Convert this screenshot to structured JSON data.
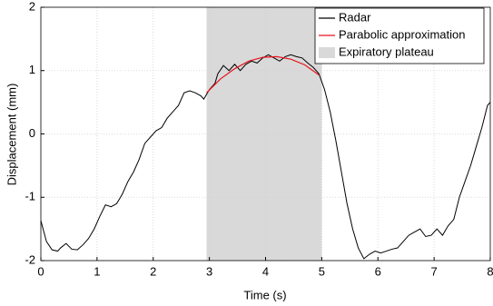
{
  "chart_data": {
    "type": "line",
    "xlabel": "Time (s)",
    "ylabel": "Displacement (mm)",
    "xlim": [
      0,
      8
    ],
    "ylim": [
      -2,
      2
    ],
    "xticks": [
      0,
      1,
      2,
      3,
      4,
      5,
      6,
      7,
      8
    ],
    "yticks": [
      -2,
      -1,
      0,
      1,
      2
    ],
    "grid": true,
    "legend": "upper right",
    "series": [
      {
        "name": "Radar",
        "color": "#000000",
        "x": [
          0,
          0.1,
          0.2,
          0.3,
          0.35,
          0.45,
          0.55,
          0.65,
          0.75,
          0.85,
          0.95,
          1.05,
          1.15,
          1.25,
          1.35,
          1.45,
          1.55,
          1.65,
          1.75,
          1.85,
          1.95,
          2.05,
          2.15,
          2.25,
          2.35,
          2.45,
          2.55,
          2.65,
          2.75,
          2.85,
          2.9,
          3.0,
          3.1,
          3.15,
          3.25,
          3.35,
          3.45,
          3.55,
          3.65,
          3.75,
          3.85,
          3.95,
          4.05,
          4.15,
          4.25,
          4.35,
          4.45,
          4.55,
          4.65,
          4.75,
          4.85,
          4.95,
          5.05,
          5.15,
          5.25,
          5.35,
          5.45,
          5.55,
          5.65,
          5.75,
          5.85,
          5.95,
          6.05,
          6.15,
          6.25,
          6.35,
          6.45,
          6.55,
          6.65,
          6.75,
          6.85,
          6.95,
          7.05,
          7.15,
          7.25,
          7.35,
          7.45,
          7.55,
          7.65,
          7.75,
          7.85,
          7.95,
          8.0
        ],
        "values": [
          -1.37,
          -1.7,
          -1.83,
          -1.85,
          -1.8,
          -1.73,
          -1.82,
          -1.83,
          -1.75,
          -1.65,
          -1.5,
          -1.3,
          -1.12,
          -1.15,
          -1.1,
          -0.95,
          -0.75,
          -0.6,
          -0.4,
          -0.15,
          -0.05,
          0.05,
          0.1,
          0.25,
          0.35,
          0.45,
          0.65,
          0.68,
          0.65,
          0.6,
          0.55,
          0.7,
          0.8,
          0.95,
          1.08,
          1.0,
          1.1,
          1.0,
          1.1,
          1.15,
          1.12,
          1.2,
          1.25,
          1.2,
          1.15,
          1.22,
          1.25,
          1.22,
          1.2,
          1.12,
          1.05,
          0.95,
          0.7,
          0.35,
          -0.1,
          -0.6,
          -1.1,
          -1.5,
          -1.8,
          -1.97,
          -1.9,
          -1.85,
          -1.88,
          -1.85,
          -1.82,
          -1.8,
          -1.7,
          -1.6,
          -1.55,
          -1.5,
          -1.62,
          -1.6,
          -1.5,
          -1.6,
          -1.45,
          -1.35,
          -1.0,
          -0.75,
          -0.5,
          -0.2,
          0.1,
          0.45,
          0.5
        ]
      },
      {
        "name": "Parabolic approximation",
        "color": "#e8141c",
        "x": [
          2.95,
          3.2,
          3.45,
          3.7,
          3.95,
          4.2,
          4.45,
          4.7,
          4.95
        ],
        "values": [
          0.65,
          0.87,
          1.03,
          1.15,
          1.21,
          1.22,
          1.18,
          1.09,
          0.93
        ]
      },
      {
        "name": "Expiratory plateau",
        "color": "#d9d9d9",
        "type": "span",
        "x": [
          2.95,
          5
        ]
      }
    ]
  }
}
